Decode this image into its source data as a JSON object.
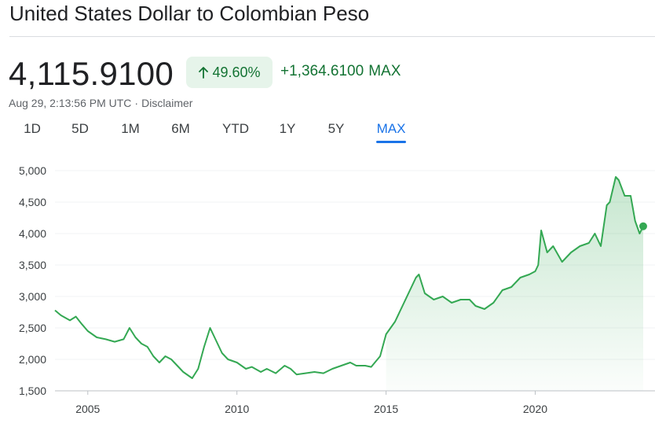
{
  "header": {
    "title": "United States Dollar to Colombian Peso"
  },
  "quote": {
    "price": "4,115.9100",
    "percent_change": "49.60%",
    "abs_change": "+1,364.6100",
    "range_label": "MAX",
    "timestamp": "Aug 29, 2:13:56 PM UTC",
    "disclaimer": "Disclaimer",
    "trend_color": "#1e8e3e",
    "badge_bg": "#e6f4ea",
    "arrow_icon": "arrow-up-icon"
  },
  "tabs": [
    {
      "label": "1D",
      "active": false
    },
    {
      "label": "5D",
      "active": false
    },
    {
      "label": "1M",
      "active": false
    },
    {
      "label": "6M",
      "active": false
    },
    {
      "label": "YTD",
      "active": false
    },
    {
      "label": "1Y",
      "active": false
    },
    {
      "label": "5Y",
      "active": false
    },
    {
      "label": "MAX",
      "active": true
    }
  ],
  "chart_data": {
    "type": "area",
    "title": "",
    "xlabel": "",
    "ylabel": "",
    "xlim": [
      2003.9,
      2023.7
    ],
    "ylim": [
      1500,
      5000
    ],
    "y_ticks": [
      1500,
      2000,
      2500,
      3000,
      3500,
      4000,
      4500,
      5000
    ],
    "y_tick_labels": [
      "1,500",
      "2,000",
      "2,500",
      "3,000",
      "3,500",
      "4,000",
      "4,500",
      "5,000"
    ],
    "x_ticks": [
      2005,
      2010,
      2015,
      2020
    ],
    "x_tick_labels": [
      "2005",
      "2010",
      "2015",
      "2020"
    ],
    "grid": "horizontal",
    "line_color": "#34a853",
    "series": [
      {
        "x": [
          2003.9,
          2004.1,
          2004.4,
          2004.6,
          2004.8,
          2005.0,
          2005.3,
          2005.6,
          2005.9,
          2006.2,
          2006.4,
          2006.6,
          2006.8,
          2007.0,
          2007.2,
          2007.4,
          2007.6,
          2007.8,
          2008.0,
          2008.2,
          2008.5,
          2008.7,
          2008.9,
          2009.1,
          2009.3,
          2009.5,
          2009.7,
          2010.0,
          2010.3,
          2010.5,
          2010.8,
          2011.0,
          2011.3,
          2011.6,
          2011.8,
          2012.0,
          2012.3,
          2012.6,
          2012.9,
          2013.2,
          2013.5,
          2013.8,
          2014.0,
          2014.3,
          2014.5,
          2014.8,
          2015.0,
          2015.3,
          2015.6,
          2015.8,
          2016.0,
          2016.1,
          2016.3,
          2016.6,
          2016.9,
          2017.2,
          2017.5,
          2017.8,
          2018.0,
          2018.3,
          2018.6,
          2018.9,
          2019.2,
          2019.5,
          2019.8,
          2020.0,
          2020.1,
          2020.2,
          2020.4,
          2020.6,
          2020.9,
          2021.2,
          2021.5,
          2021.8,
          2022.0,
          2022.2,
          2022.4,
          2022.5,
          2022.7,
          2022.8,
          2023.0,
          2023.2,
          2023.35,
          2023.5,
          2023.62
        ],
        "values": [
          2780,
          2700,
          2620,
          2680,
          2560,
          2450,
          2350,
          2320,
          2280,
          2320,
          2500,
          2350,
          2250,
          2200,
          2050,
          1950,
          2050,
          2000,
          1900,
          1800,
          1700,
          1850,
          2200,
          2500,
          2300,
          2100,
          2000,
          1950,
          1850,
          1880,
          1800,
          1850,
          1780,
          1900,
          1850,
          1760,
          1780,
          1800,
          1780,
          1850,
          1900,
          1950,
          1900,
          1900,
          1880,
          2050,
          2400,
          2600,
          2900,
          3100,
          3300,
          3350,
          3050,
          2950,
          3000,
          2900,
          2950,
          2950,
          2850,
          2800,
          2900,
          3100,
          3150,
          3300,
          3350,
          3400,
          3500,
          4050,
          3700,
          3800,
          3550,
          3700,
          3800,
          3850,
          4000,
          3800,
          4450,
          4500,
          4900,
          4850,
          4600,
          4600,
          4200,
          4000,
          4115.91
        ]
      }
    ]
  }
}
